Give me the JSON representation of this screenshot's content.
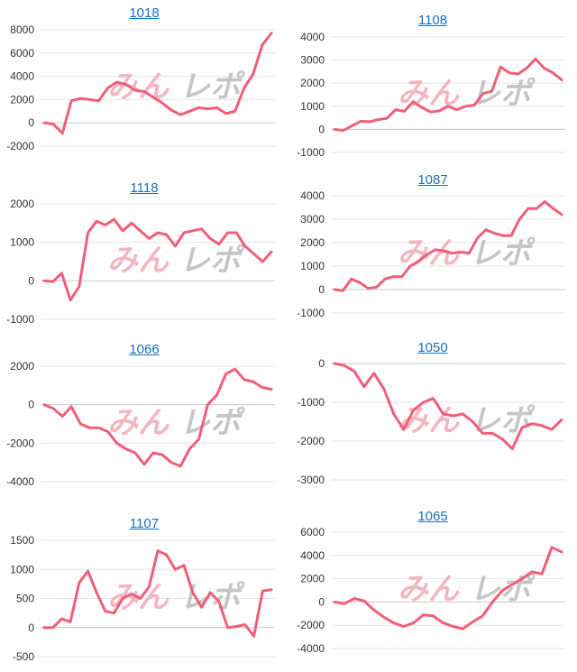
{
  "watermark": {
    "text_pink": "みん",
    "text_gray": "レポ"
  },
  "colors": {
    "line": "#ef5f7a",
    "title": "#1a6fbf",
    "grid": "#e4e4e4"
  },
  "chart_data": [
    {
      "type": "line",
      "title": "1018",
      "ylim": [
        -2000,
        8000
      ],
      "yticks": [
        -2000,
        0,
        2000,
        4000,
        6000,
        8000
      ],
      "values": [
        0,
        -100,
        -900,
        1900,
        2100,
        2000,
        1900,
        3000,
        3500,
        3300,
        2800,
        2700,
        2200,
        1700,
        1100,
        700,
        1000,
        1300,
        1200,
        1300,
        800,
        1000,
        3000,
        4200,
        6700,
        7700
      ]
    },
    {
      "type": "line",
      "title": "1108",
      "ylim": [
        -1000,
        4000
      ],
      "yticks": [
        -1000,
        0,
        1000,
        2000,
        3000,
        4000
      ],
      "values": [
        0,
        -50,
        150,
        350,
        330,
        420,
        480,
        850,
        780,
        1200,
        950,
        750,
        800,
        1000,
        850,
        1000,
        1050,
        1550,
        1650,
        2700,
        2450,
        2400,
        2650,
        3050,
        2650,
        2450,
        2150
      ]
    },
    {
      "type": "line",
      "title": "1118",
      "ylim": [
        -1000,
        2000
      ],
      "yticks": [
        -1000,
        0,
        1000,
        2000
      ],
      "values": [
        0,
        -20,
        200,
        -500,
        -150,
        1250,
        1550,
        1450,
        1600,
        1300,
        1500,
        1300,
        1100,
        1250,
        1200,
        900,
        1250,
        1300,
        1350,
        1100,
        950,
        1250,
        1250,
        900,
        700,
        500,
        750
      ]
    },
    {
      "type": "line",
      "title": "1087",
      "ylim": [
        -1000,
        4000
      ],
      "yticks": [
        -1000,
        0,
        1000,
        2000,
        3000,
        4000
      ],
      "values": [
        0,
        -50,
        450,
        300,
        50,
        100,
        450,
        550,
        550,
        1000,
        1200,
        1500,
        1700,
        1650,
        1550,
        1600,
        1550,
        2200,
        2550,
        2400,
        2300,
        2300,
        3000,
        3450,
        3450,
        3750,
        3450,
        3200
      ]
    },
    {
      "type": "line",
      "title": "1066",
      "ylim": [
        -4000,
        2000
      ],
      "yticks": [
        -4000,
        -2000,
        0,
        2000
      ],
      "values": [
        0,
        -200,
        -600,
        -100,
        -1000,
        -1200,
        -1200,
        -1400,
        -2000,
        -2300,
        -2500,
        -3100,
        -2500,
        -2600,
        -3000,
        -3200,
        -2300,
        -1800,
        0,
        500,
        1600,
        1850,
        1300,
        1200,
        900,
        800
      ]
    },
    {
      "type": "line",
      "title": "1050",
      "ylim": [
        -3000,
        0
      ],
      "yticks": [
        -3000,
        -2000,
        -1000,
        0
      ],
      "values": [
        0,
        -50,
        -200,
        -600,
        -250,
        -650,
        -1300,
        -1700,
        -1200,
        -1000,
        -900,
        -1300,
        -1350,
        -1300,
        -1500,
        -1800,
        -1800,
        -1950,
        -2200,
        -1650,
        -1550,
        -1600,
        -1700,
        -1450
      ]
    },
    {
      "type": "line",
      "title": "1107",
      "ylim": [
        -500,
        1500
      ],
      "yticks": [
        -500,
        0,
        500,
        1000,
        1500
      ],
      "values": [
        0,
        0,
        150,
        100,
        770,
        970,
        600,
        280,
        250,
        500,
        580,
        500,
        700,
        1320,
        1250,
        1000,
        1070,
        600,
        350,
        600,
        450,
        0,
        20,
        50,
        -150,
        630,
        650
      ]
    },
    {
      "type": "line",
      "title": "1065",
      "ylim": [
        -4000,
        6000
      ],
      "yticks": [
        -4000,
        -2000,
        0,
        2000,
        4000,
        6000
      ],
      "values": [
        0,
        -150,
        300,
        100,
        -700,
        -1300,
        -1800,
        -2100,
        -1800,
        -1100,
        -1200,
        -1800,
        -2100,
        -2300,
        -1700,
        -1200,
        0,
        1000,
        1500,
        2000,
        2600,
        2400,
        4700,
        4300
      ]
    }
  ]
}
